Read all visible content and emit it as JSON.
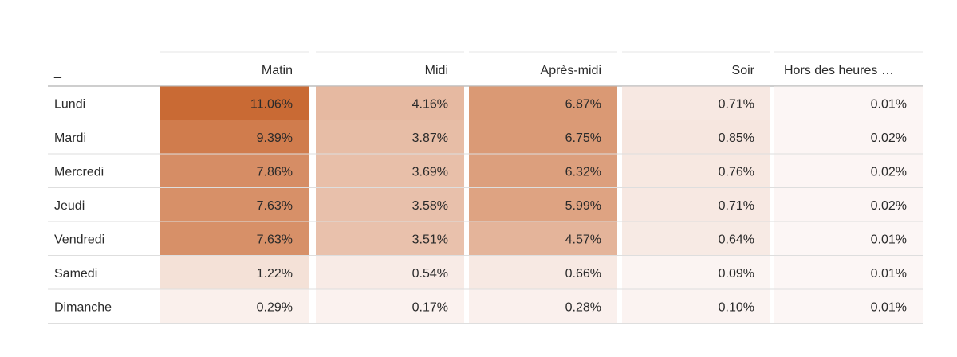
{
  "chart_data": {
    "type": "heatmap",
    "corner_label": "_",
    "columns": [
      "Matin",
      "Midi",
      "Après-midi",
      "Soir",
      "Hors des heures …"
    ],
    "rows": [
      "Lundi",
      "Mardi",
      "Mercredi",
      "Jeudi",
      "Vendredi",
      "Samedi",
      "Dimanche"
    ],
    "values": [
      [
        11.06,
        4.16,
        6.87,
        0.71,
        0.01
      ],
      [
        9.39,
        3.87,
        6.75,
        0.85,
        0.02
      ],
      [
        7.86,
        3.69,
        6.32,
        0.76,
        0.02
      ],
      [
        7.63,
        3.58,
        5.99,
        0.71,
        0.02
      ],
      [
        7.63,
        3.51,
        4.57,
        0.64,
        0.01
      ],
      [
        1.22,
        0.54,
        0.66,
        0.09,
        0.01
      ],
      [
        0.29,
        0.17,
        0.28,
        0.1,
        0.01
      ]
    ],
    "value_labels": [
      [
        "11.06%",
        "4.16%",
        "6.87%",
        "0.71%",
        "0.01%"
      ],
      [
        "9.39%",
        "3.87%",
        "6.75%",
        "0.85%",
        "0.02%"
      ],
      [
        "7.86%",
        "3.69%",
        "6.32%",
        "0.76%",
        "0.02%"
      ],
      [
        "7.63%",
        "3.58%",
        "5.99%",
        "0.71%",
        "0.02%"
      ],
      [
        "7.63%",
        "3.51%",
        "4.57%",
        "0.64%",
        "0.01%"
      ],
      [
        "1.22%",
        "0.54%",
        "0.66%",
        "0.09%",
        "0.01%"
      ],
      [
        "0.29%",
        "0.17%",
        "0.28%",
        "0.10%",
        "0.01%"
      ]
    ],
    "value_range": [
      0,
      11.06
    ],
    "colors": {
      "low": "#fcf6f5",
      "high": "#c96a34",
      "grid_line": "#dedede"
    }
  }
}
